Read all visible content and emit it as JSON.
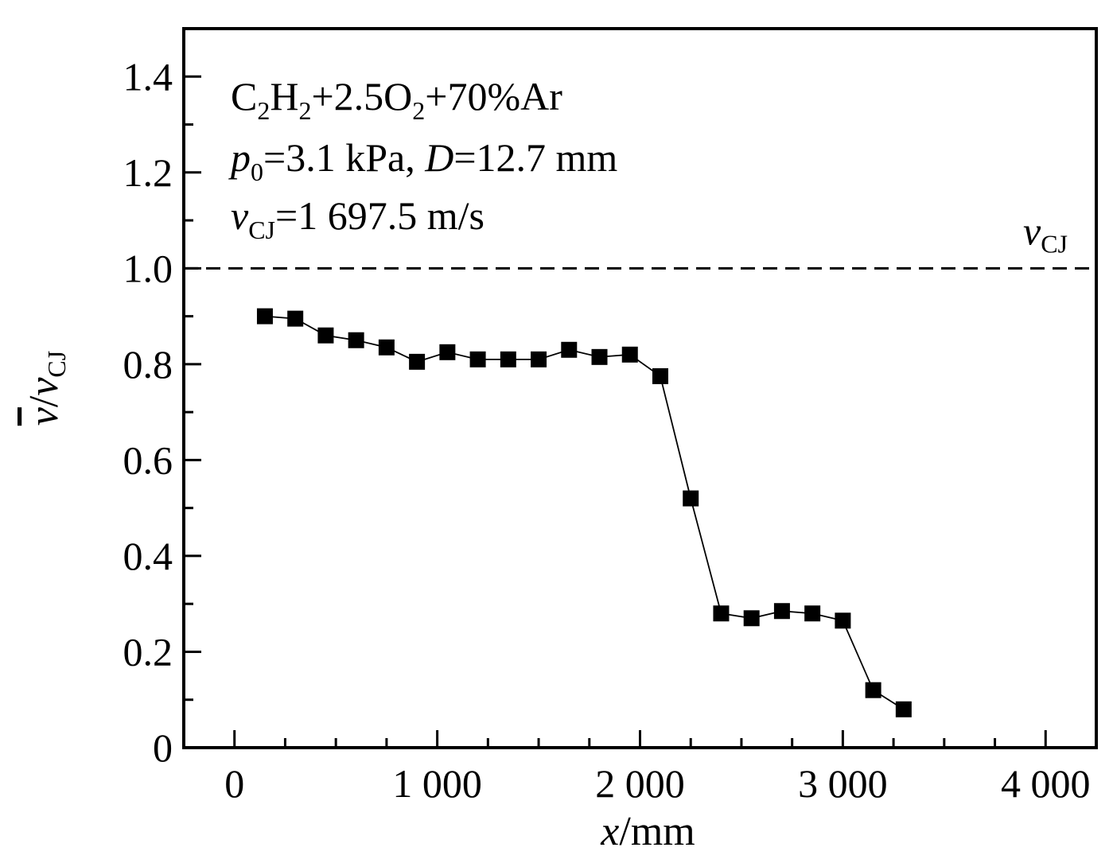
{
  "chart_data": {
    "type": "scatter",
    "xlabel": {
      "var": "x",
      "unit": "/mm"
    },
    "ylabel": {
      "var": "v",
      "sep": "/",
      "var2": "v",
      "sub": "CJ"
    },
    "xlim": [
      -250,
      4250
    ],
    "ylim": [
      0,
      1.5
    ],
    "x_ticks": [
      {
        "value": 0,
        "label": "0"
      },
      {
        "value": 1000,
        "label": "1 000"
      },
      {
        "value": 2000,
        "label": "2 000"
      },
      {
        "value": 3000,
        "label": "3 000"
      },
      {
        "value": 4000,
        "label": "4 000"
      }
    ],
    "x_minor_ticks": [
      -250,
      250,
      500,
      750,
      1250,
      1500,
      1750,
      2250,
      2500,
      2750,
      3250,
      3500,
      3750,
      4250
    ],
    "y_ticks": [
      {
        "value": 0,
        "label": "0"
      },
      {
        "value": 0.2,
        "label": "0.2"
      },
      {
        "value": 0.4,
        "label": "0.4"
      },
      {
        "value": 0.6,
        "label": "0.6"
      },
      {
        "value": 0.8,
        "label": "0.8"
      },
      {
        "value": 1.0,
        "label": "1.0"
      },
      {
        "value": 1.2,
        "label": "1.2"
      },
      {
        "value": 1.4,
        "label": "1.4"
      }
    ],
    "y_minor_ticks": [
      0.1,
      0.3,
      0.5,
      0.7,
      0.9,
      1.1,
      1.3
    ],
    "reference_line": {
      "y": 1.0,
      "style": "dashed",
      "label": "v",
      "label_sub": "CJ"
    },
    "series": [
      {
        "marker": "square",
        "color": "#000000",
        "x": [
          150,
          300,
          450,
          600,
          750,
          900,
          1050,
          1200,
          1350,
          1500,
          1650,
          1800,
          1950,
          2100,
          2250,
          2400,
          2550,
          2700,
          2850,
          3000,
          3150,
          3300
        ],
        "y": [
          0.9,
          0.895,
          0.86,
          0.85,
          0.835,
          0.805,
          0.825,
          0.81,
          0.81,
          0.81,
          0.83,
          0.815,
          0.82,
          0.775,
          0.52,
          0.28,
          0.27,
          0.285,
          0.28,
          0.265,
          0.12,
          0.08
        ]
      }
    ],
    "annotations": [
      {
        "parts": [
          {
            "t": "C"
          },
          {
            "t": "2",
            "sub": true
          },
          {
            "t": "H"
          },
          {
            "t": "2",
            "sub": true
          },
          {
            "t": "+2.5O"
          },
          {
            "t": "2",
            "sub": true
          },
          {
            "t": "+70%Ar"
          }
        ]
      },
      {
        "parts": [
          {
            "t": "p",
            "italic": true
          },
          {
            "t": "0",
            "sub": true
          },
          {
            "t": "=3.1 kPa, "
          },
          {
            "t": "D",
            "italic": true
          },
          {
            "t": "=12.7 mm"
          }
        ]
      },
      {
        "parts": [
          {
            "t": "v",
            "italic": true
          },
          {
            "t": "CJ",
            "sub": true
          },
          {
            "t": "=1 697.5 m/s"
          }
        ]
      }
    ]
  }
}
